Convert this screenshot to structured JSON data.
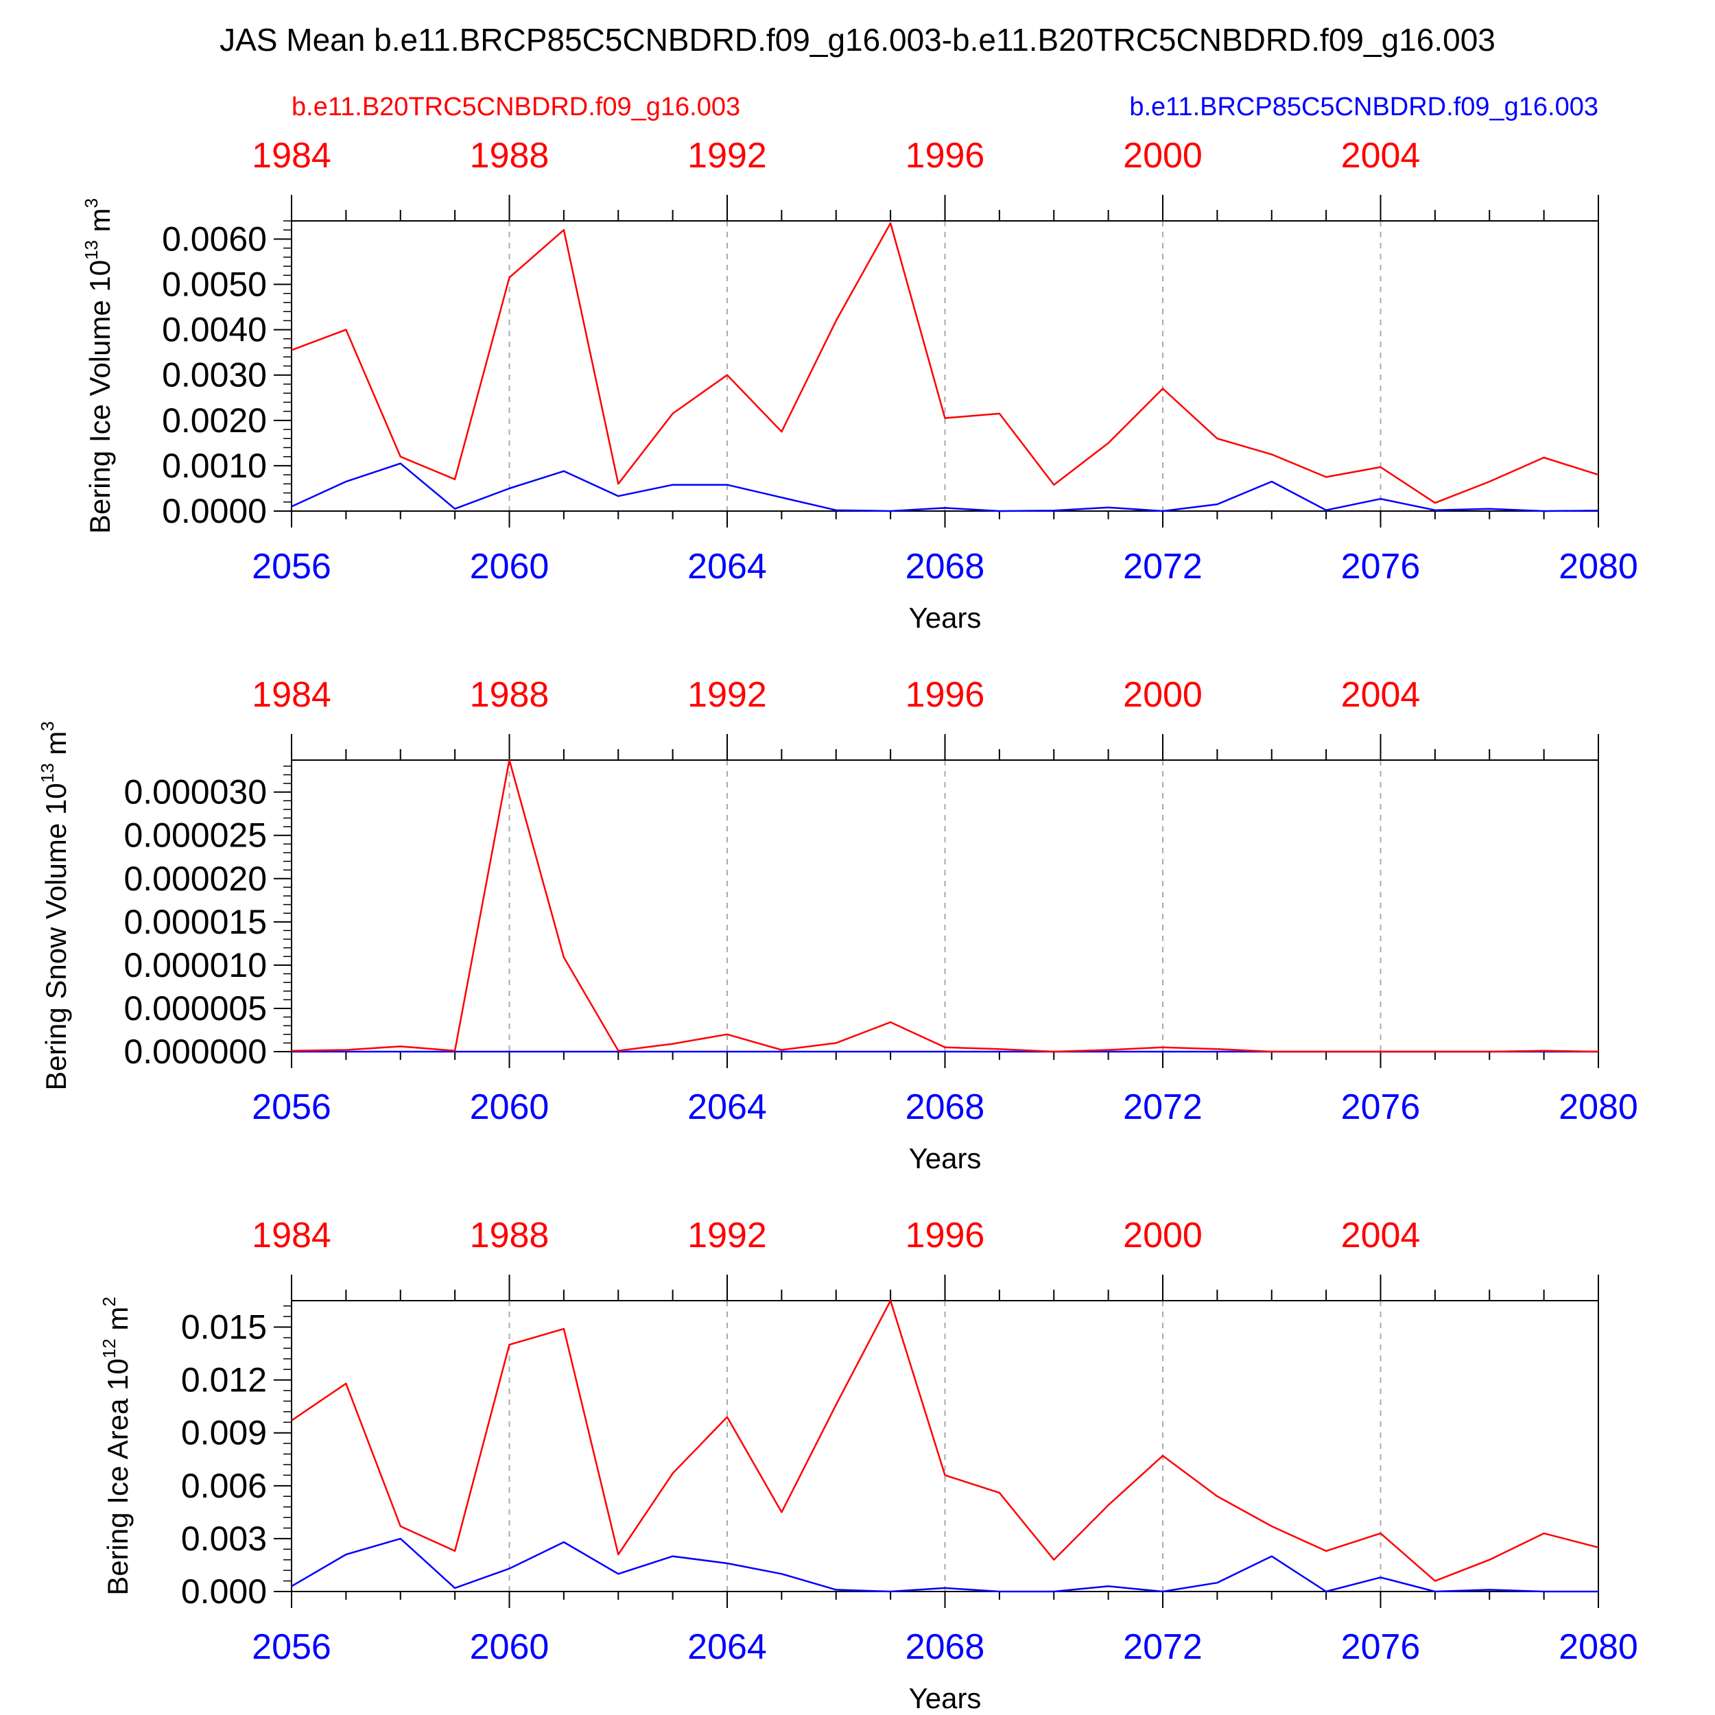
{
  "title": "JAS Mean b.e11.BRCP85C5CNBDRD.f09_g16.003-b.e11.B20TRC5CNBDRD.f09_g16.003",
  "legend": {
    "red_label": "b.e11.B20TRC5CNBDRD.f09_g16.003",
    "blue_label": "b.e11.BRCP85C5CNBDRD.f09_g16.003",
    "red_color": "#ff0000",
    "blue_color": "#0000ff"
  },
  "colors": {
    "axis": "#000000",
    "grid": "#aaaaaa"
  },
  "chart_data": [
    {
      "type": "line",
      "ylabel": "Bering Ice Volume 10",
      "ylabel_exp": "13",
      "ylabel_unit": " m",
      "ylabel_unit_exp": "3",
      "xlabel": "Years",
      "xlim": [
        2056,
        2080
      ],
      "ylim": [
        0,
        0.0064
      ],
      "yticks": [
        "0.0000",
        "0.0010",
        "0.0020",
        "0.0030",
        "0.0040",
        "0.0050",
        "0.0060"
      ],
      "yticks_values": [
        0,
        0.001,
        0.002,
        0.003,
        0.004,
        0.005,
        0.006
      ],
      "yminor_step": 0.0002,
      "xticks_bottom": [
        "2056",
        "2060",
        "2064",
        "2068",
        "2072",
        "2076",
        "2080"
      ],
      "xticks_top": [
        "1984",
        "1988",
        "1992",
        "1996",
        "2000",
        "2004"
      ],
      "x": [
        2056,
        2057,
        2058,
        2059,
        2060,
        2061,
        2062,
        2063,
        2064,
        2065,
        2066,
        2067,
        2068,
        2069,
        2070,
        2071,
        2072,
        2073,
        2074,
        2075,
        2076,
        2077,
        2078,
        2079,
        2080
      ],
      "series": [
        {
          "name": "b.e11.B20TRC5CNBDRD.f09_g16.003",
          "color": "#ff0000",
          "values": [
            0.00355,
            0.004,
            0.0012,
            0.0007,
            0.00515,
            0.0062,
            0.0006,
            0.00215,
            0.003,
            0.00175,
            0.0042,
            0.00635,
            0.00205,
            0.00215,
            0.00058,
            0.0015,
            0.0027,
            0.0016,
            0.00125,
            0.00075,
            0.00097,
            0.00018,
            0.00065,
            0.00118,
            0.0008
          ]
        },
        {
          "name": "b.e11.BRCP85C5CNBDRD.f09_g16.003",
          "color": "#0000ff",
          "values": [
            0.0001,
            0.00065,
            0.00105,
            5e-05,
            0.0005,
            0.00088,
            0.00033,
            0.00058,
            0.00058,
            0.0003,
            2e-05,
            0.0,
            7e-05,
            0.0,
            1e-05,
            8e-05,
            0.0,
            0.00015,
            0.00065,
            2e-05,
            0.00027,
            2e-05,
            5e-05,
            0.0,
            1e-05
          ]
        }
      ]
    },
    {
      "type": "line",
      "ylabel": "Bering Snow Volume 10",
      "ylabel_exp": "13",
      "ylabel_unit": " m",
      "ylabel_unit_exp": "3",
      "xlabel": "Years",
      "xlim": [
        2056,
        2080
      ],
      "ylim": [
        0,
        3.37e-05
      ],
      "yticks": [
        "0.000000",
        "0.000005",
        "0.000010",
        "0.000015",
        "0.000020",
        "0.000025",
        "0.000030"
      ],
      "yticks_values": [
        0,
        5e-06,
        1e-05,
        1.5e-05,
        2e-05,
        2.5e-05,
        3e-05
      ],
      "yminor_step": 1e-06,
      "xticks_bottom": [
        "2056",
        "2060",
        "2064",
        "2068",
        "2072",
        "2076",
        "2080"
      ],
      "xticks_top": [
        "1984",
        "1988",
        "1992",
        "1996",
        "2000",
        "2004"
      ],
      "x": [
        2056,
        2057,
        2058,
        2059,
        2060,
        2061,
        2062,
        2063,
        2064,
        2065,
        2066,
        2067,
        2068,
        2069,
        2070,
        2071,
        2072,
        2073,
        2074,
        2075,
        2076,
        2077,
        2078,
        2079,
        2080
      ],
      "series": [
        {
          "name": "b.e11.B20TRC5CNBDRD.f09_g16.003",
          "color": "#ff0000",
          "values": [
            1e-07,
            2e-07,
            6e-07,
            1e-07,
            3.37e-05,
            1.09e-05,
            1e-07,
            9e-07,
            2e-06,
            2e-07,
            1e-06,
            3.4e-06,
            5e-07,
            3e-07,
            0.0,
            2e-07,
            5e-07,
            3e-07,
            0.0,
            0.0,
            0.0,
            0.0,
            0.0,
            1e-07,
            0.0
          ]
        },
        {
          "name": "b.e11.BRCP85C5CNBDRD.f09_g16.003",
          "color": "#0000ff",
          "values": [
            0,
            0,
            0,
            0,
            0,
            0,
            0,
            0,
            0,
            0,
            0,
            0,
            0,
            0,
            0,
            0,
            0,
            0,
            0,
            0,
            0,
            0,
            0,
            0,
            0
          ]
        }
      ]
    },
    {
      "type": "line",
      "ylabel": "Bering Ice Area 10",
      "ylabel_exp": "12",
      "ylabel_unit": " m",
      "ylabel_unit_exp": "2",
      "xlabel": "Years",
      "xlim": [
        2056,
        2080
      ],
      "ylim": [
        0,
        0.0165
      ],
      "yticks": [
        "0.000",
        "0.003",
        "0.006",
        "0.009",
        "0.012",
        "0.015"
      ],
      "yticks_values": [
        0,
        0.003,
        0.006,
        0.009,
        0.012,
        0.015
      ],
      "yminor_step": 0.0006,
      "xticks_bottom": [
        "2056",
        "2060",
        "2064",
        "2068",
        "2072",
        "2076",
        "2080"
      ],
      "xticks_top": [
        "1984",
        "1988",
        "1992",
        "1996",
        "2000",
        "2004"
      ],
      "x": [
        2056,
        2057,
        2058,
        2059,
        2060,
        2061,
        2062,
        2063,
        2064,
        2065,
        2066,
        2067,
        2068,
        2069,
        2070,
        2071,
        2072,
        2073,
        2074,
        2075,
        2076,
        2077,
        2078,
        2079,
        2080
      ],
      "series": [
        {
          "name": "b.e11.B20TRC5CNBDRD.f09_g16.003",
          "color": "#ff0000",
          "values": [
            0.0097,
            0.0118,
            0.0037,
            0.0023,
            0.014,
            0.0149,
            0.0021,
            0.0067,
            0.0099,
            0.0045,
            0.0106,
            0.0165,
            0.0066,
            0.0056,
            0.0018,
            0.0049,
            0.0077,
            0.0054,
            0.0037,
            0.0023,
            0.0033,
            0.0006,
            0.0018,
            0.0033,
            0.0025
          ]
        },
        {
          "name": "b.e11.BRCP85C5CNBDRD.f09_g16.003",
          "color": "#0000ff",
          "values": [
            0.0003,
            0.0021,
            0.003,
            0.0002,
            0.0013,
            0.0028,
            0.001,
            0.002,
            0.0016,
            0.001,
            0.0001,
            0.0,
            0.0002,
            0.0,
            0.0,
            0.0003,
            0.0,
            0.0005,
            0.002,
            0.0,
            0.0008,
            0.0,
            0.0001,
            0.0,
            0.0
          ]
        }
      ]
    }
  ]
}
